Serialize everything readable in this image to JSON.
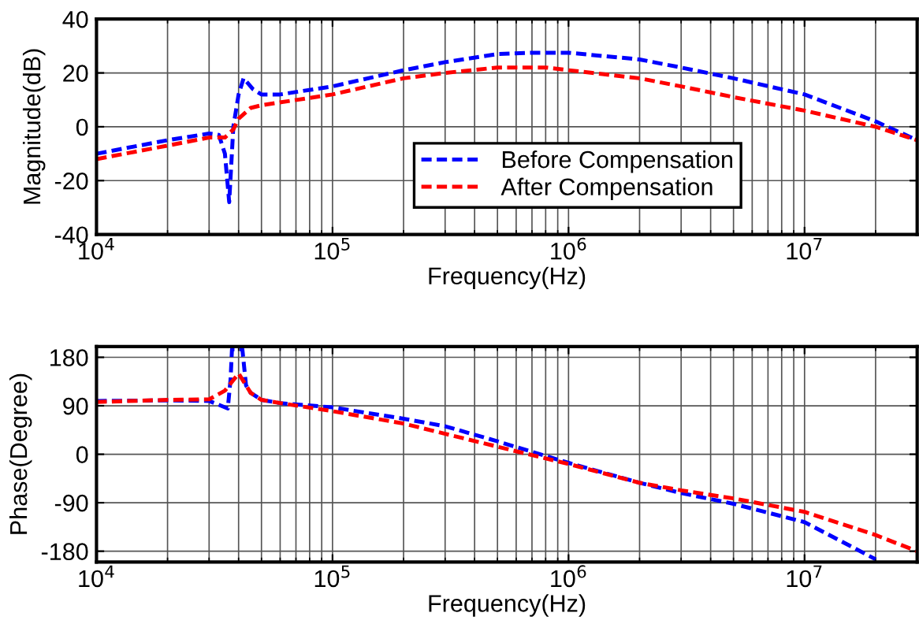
{
  "chart_data": [
    {
      "type": "line",
      "ylabel": "Magnitude(dB)",
      "xlabel": "Frequency(Hz)",
      "log": "x",
      "grid": true,
      "legend": "bottom right",
      "line_style": "dashed",
      "marker": "none",
      "xlim": [
        10000,
        30000000
      ],
      "xticks": [
        {
          "value": 10000,
          "label": "10$^{4}$"
        },
        {
          "value": 100000,
          "label": "10$^{5}$"
        },
        {
          "value": 1000000,
          "label": "10$^{6}$"
        },
        {
          "value": 10000000,
          "label": "10$^{7}$"
        }
      ],
      "ylim": [
        -40,
        40
      ],
      "yticks": [
        -40,
        -20,
        0,
        20,
        40
      ],
      "series": [
        {
          "name": "Before Compensation",
          "color": "#0000ff",
          "x": [
            10000,
            20000,
            30000,
            33000,
            35000,
            36500,
            38000,
            40000,
            42000,
            46000,
            50000,
            60000,
            100000,
            200000,
            300000,
            500000,
            700000,
            1000000,
            2000000,
            3000000,
            5000000,
            10000000,
            20000000,
            30000000
          ],
          "values": [
            -10,
            -5,
            -2.5,
            -3,
            -10,
            -28,
            0,
            12,
            18,
            14,
            12,
            12,
            15,
            21,
            24,
            27,
            27.5,
            27.5,
            25,
            22,
            18,
            12,
            2,
            -5
          ]
        },
        {
          "name": "After Compensation",
          "color": "#ff0000",
          "x": [
            10000,
            20000,
            30000,
            35000,
            38000,
            40000,
            45000,
            50000,
            100000,
            200000,
            300000,
            500000,
            800000,
            1000000,
            2000000,
            3000000,
            5000000,
            10000000,
            20000000,
            30000000
          ],
          "values": [
            -12,
            -7,
            -4,
            -4,
            -1,
            3,
            7,
            8,
            12,
            18,
            20,
            22,
            22,
            21,
            18,
            15,
            11,
            6,
            0,
            -5
          ]
        }
      ]
    },
    {
      "type": "line",
      "ylabel": "Phase(Degree)",
      "xlabel": "Frequency(Hz)",
      "log": "x",
      "grid": true,
      "legend": false,
      "line_style": "dashed",
      "marker": "none",
      "xlim": [
        10000,
        30000000
      ],
      "xticks": [
        {
          "value": 10000,
          "label": "10$^{4}$"
        },
        {
          "value": 100000,
          "label": "10$^{5}$"
        },
        {
          "value": 1000000,
          "label": "10$^{6}$"
        },
        {
          "value": 10000000,
          "label": "10$^{7}$"
        }
      ],
      "ylim": [
        -200,
        200
      ],
      "yticks": [
        -180,
        -90,
        0,
        90,
        180
      ],
      "series": [
        {
          "color": "#0000ff",
          "x": [
            10000,
            20000,
            30000,
            36000,
            37000,
            37500,
            41500,
            43000,
            45000,
            50000,
            60000,
            100000,
            200000,
            300000,
            500000,
            1000000,
            2000000,
            3000000,
            5000000,
            10000000,
            20000000
          ],
          "values": [
            99,
            100,
            99,
            85,
            140,
            195,
            195,
            128,
            114,
            101,
            95,
            87,
            66,
            52,
            24,
            -16,
            -53,
            -72,
            -92,
            -126,
            -195
          ]
        },
        {
          "color": "#ff0000",
          "x": [
            10000,
            20000,
            30000,
            35000,
            40000,
            45000,
            50000,
            60000,
            100000,
            200000,
            300000,
            500000,
            1000000,
            2000000,
            3000000,
            5000000,
            10000000,
            20000000,
            30000000
          ],
          "values": [
            97,
            101,
            102,
            118,
            150,
            114,
            101,
            95,
            80,
            57,
            38,
            14,
            -18,
            -53,
            -67,
            -82,
            -107,
            -150,
            -180
          ]
        }
      ]
    }
  ]
}
